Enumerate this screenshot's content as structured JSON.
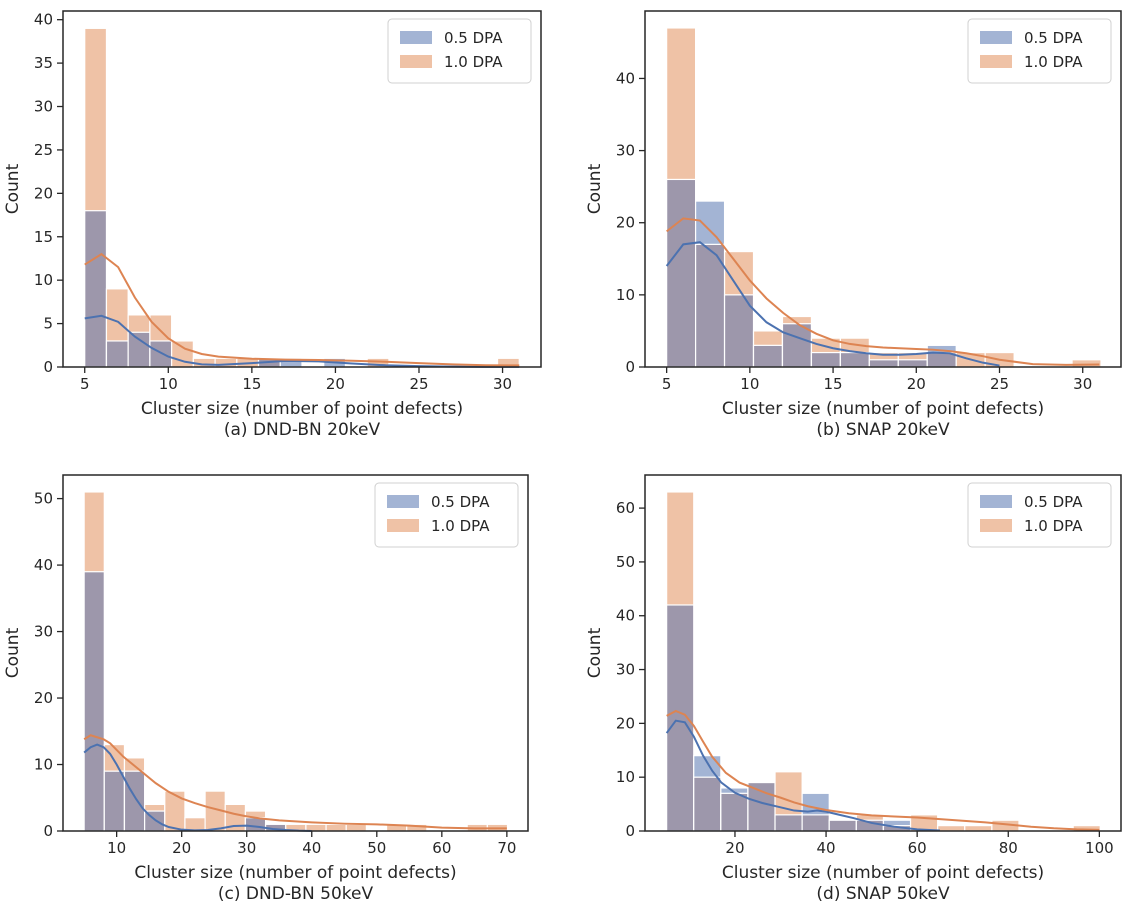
{
  "figure": {
    "legend": [
      "0.5 DPA",
      "1.0 DPA"
    ],
    "colors": {
      "series_a_fill": "#a3b4d4",
      "series_b_fill": "#efc2a6",
      "overlap_fill": "#9d97ab",
      "series_a_line": "#4c72b0",
      "series_b_line": "#dd8452",
      "axis": "#262626",
      "bar_edge": "#ffffff"
    }
  },
  "chart_data": [
    {
      "type": "bar",
      "title": "(a) DND-BN 20keV",
      "xlabel": "Cluster size (number of point defects)",
      "ylabel": "Count",
      "xlim": [
        3.7,
        32.3
      ],
      "ylim": [
        0,
        41
      ],
      "xticks": [
        5,
        10,
        15,
        20,
        25,
        30
      ],
      "yticks": [
        0,
        5,
        10,
        15,
        20,
        25,
        30,
        35,
        40
      ],
      "bin_start": 5,
      "bin_width": 1.3,
      "series": [
        {
          "name": "0.5 DPA",
          "values": [
            18,
            3,
            4,
            3,
            0,
            0,
            0,
            0,
            1,
            1,
            0,
            1,
            0,
            0,
            0,
            0,
            0,
            0,
            0,
            0
          ]
        },
        {
          "name": "1.0 DPA",
          "values": [
            39,
            9,
            6,
            6,
            3,
            1,
            1,
            1,
            1,
            0,
            0,
            0,
            0,
            1,
            0,
            0,
            0,
            0,
            0,
            1
          ]
        }
      ],
      "kde": [
        {
          "name": "0.5 DPA",
          "x": [
            5,
            6,
            7,
            8,
            9,
            10,
            11,
            12,
            13,
            15,
            17,
            19,
            21,
            23,
            25,
            27,
            29,
            31
          ],
          "y": [
            5.6,
            5.9,
            5.2,
            3.5,
            2.2,
            1.2,
            0.6,
            0.3,
            0.25,
            0.45,
            0.7,
            0.65,
            0.4,
            0.2,
            0.1,
            0.05,
            0.02,
            0.01
          ]
        },
        {
          "name": "1.0 DPA",
          "x": [
            5,
            6,
            7,
            8,
            9,
            10,
            11,
            12,
            13,
            15,
            17,
            19,
            21,
            23,
            25,
            27,
            29,
            31
          ],
          "y": [
            11.8,
            13,
            11.5,
            8,
            5.2,
            3.3,
            2.1,
            1.5,
            1.2,
            0.95,
            0.85,
            0.8,
            0.72,
            0.6,
            0.45,
            0.3,
            0.2,
            0.18
          ]
        }
      ]
    },
    {
      "type": "bar",
      "title": "(b) SNAP 20keV",
      "xlabel": "Cluster size (number of point defects)",
      "ylabel": "Count",
      "xlim": [
        3.7,
        32.3
      ],
      "ylim": [
        0,
        49.35
      ],
      "xticks": [
        5,
        10,
        15,
        20,
        25,
        30
      ],
      "yticks": [
        0,
        10,
        20,
        30,
        40
      ],
      "bin_start": 5,
      "bin_width": 1.74,
      "series": [
        {
          "name": "0.5 DPA",
          "values": [
            26,
            23,
            10,
            3,
            6,
            2,
            2,
            1,
            1,
            3,
            0,
            0,
            0,
            0,
            0
          ]
        },
        {
          "name": "1.0 DPA",
          "values": [
            47,
            17,
            16,
            5,
            7,
            4,
            4,
            2,
            2,
            2,
            2,
            2,
            0,
            0,
            1
          ]
        }
      ],
      "kde": [
        {
          "name": "0.5 DPA",
          "x": [
            5,
            6,
            7,
            8,
            9,
            10,
            11,
            12,
            13,
            14,
            15,
            16,
            17,
            18,
            19,
            20,
            21,
            22,
            23,
            24,
            25
          ],
          "y": [
            14,
            17,
            17.3,
            15.5,
            12,
            8.5,
            6.2,
            4.8,
            4,
            3.2,
            2.6,
            2.2,
            1.9,
            1.7,
            1.7,
            1.8,
            2,
            1.9,
            1.2,
            0.6,
            0.2
          ]
        },
        {
          "name": "1.0 DPA",
          "x": [
            5,
            6,
            7,
            8,
            9,
            10,
            11,
            12,
            13,
            14,
            15,
            16,
            17,
            18,
            19,
            20,
            21,
            22,
            23,
            24,
            25,
            27,
            29,
            31
          ],
          "y": [
            18.8,
            20.6,
            20.3,
            18,
            15,
            12,
            9.5,
            7.5,
            5.8,
            4.6,
            3.7,
            3.2,
            2.9,
            2.7,
            2.6,
            2.5,
            2.4,
            2.2,
            1.9,
            1.5,
            1,
            0.4,
            0.3,
            0.35
          ]
        }
      ]
    },
    {
      "type": "bar",
      "title": "(c) DND-BN 50keV",
      "xlabel": "Cluster size (number of point defects)",
      "ylabel": "Count",
      "xlim": [
        1.75,
        73.25
      ],
      "ylim": [
        0,
        53.55
      ],
      "xticks": [
        10,
        20,
        30,
        40,
        50,
        60,
        70
      ],
      "yticks": [
        0,
        10,
        20,
        30,
        40,
        50
      ],
      "bin_start": 5,
      "bin_width": 3.1,
      "series": [
        {
          "name": "0.5 DPA",
          "values": [
            39,
            9,
            9,
            3,
            0,
            0,
            0,
            0,
            2,
            1,
            0,
            0,
            0,
            0,
            0,
            0,
            0,
            0,
            0,
            0,
            0
          ]
        },
        {
          "name": "1.0 DPA",
          "values": [
            51,
            13,
            11,
            4,
            6,
            2,
            6,
            4,
            3,
            1,
            1,
            1,
            1,
            1,
            0,
            1,
            1,
            0,
            0,
            1,
            1
          ]
        }
      ],
      "kde": [
        {
          "name": "0.5 DPA",
          "x": [
            5,
            6,
            7,
            8,
            9,
            10,
            11,
            12,
            13,
            14,
            15,
            16,
            17,
            18,
            20,
            22,
            24,
            26,
            28,
            30,
            32,
            34,
            36,
            38,
            40
          ],
          "y": [
            11.8,
            12.6,
            13,
            12.6,
            11.6,
            10,
            8.2,
            6.4,
            4.8,
            3.4,
            2.4,
            1.6,
            1,
            0.6,
            0.2,
            0.1,
            0.15,
            0.4,
            0.75,
            0.8,
            0.6,
            0.3,
            0.15,
            0.05,
            0
          ]
        },
        {
          "name": "1.0 DPA",
          "x": [
            5,
            6,
            7,
            8,
            9,
            10,
            11,
            12,
            14,
            16,
            18,
            20,
            22,
            24,
            26,
            28,
            30,
            32,
            35,
            40,
            45,
            50,
            55,
            60,
            65,
            70
          ],
          "y": [
            13.8,
            14.4,
            14.1,
            13.8,
            13.2,
            12.2,
            11.2,
            10.4,
            8.8,
            7.2,
            5.9,
            4.9,
            4.2,
            3.6,
            3.1,
            2.6,
            2.2,
            1.9,
            1.6,
            1.3,
            1.1,
            1,
            0.8,
            0.5,
            0.4,
            0.4
          ]
        }
      ]
    },
    {
      "type": "bar",
      "title": "(d) SNAP 50keV",
      "xlabel": "Cluster size (number of point defects)",
      "ylabel": "Count",
      "xlim": [
        0.25,
        104.75
      ],
      "ylim": [
        0,
        66.15
      ],
      "xticks": [
        20,
        40,
        60,
        80,
        100
      ],
      "yticks": [
        0,
        10,
        20,
        30,
        40,
        50,
        60
      ],
      "bin_start": 5,
      "bin_width": 5.95,
      "series": [
        {
          "name": "0.5 DPA",
          "values": [
            42,
            14,
            8,
            9,
            3,
            7,
            2,
            2,
            2,
            0,
            0,
            0,
            0,
            0,
            0,
            0
          ]
        },
        {
          "name": "1.0 DPA",
          "values": [
            63,
            10,
            7,
            9,
            11,
            3,
            2,
            3,
            1,
            3,
            1,
            1,
            2,
            0,
            0,
            1
          ]
        }
      ],
      "kde": [
        {
          "name": "0.5 DPA",
          "x": [
            5,
            7,
            9,
            11,
            13,
            15,
            17,
            20,
            23,
            26,
            30,
            33,
            36,
            38,
            40,
            43,
            46,
            50,
            55,
            60,
            65
          ],
          "y": [
            18.2,
            20.5,
            20.2,
            17.5,
            14,
            11.2,
            9,
            7.1,
            6,
            5.2,
            4.4,
            3.8,
            3.6,
            3.8,
            3.6,
            3,
            2.4,
            1.5,
            0.8,
            0.3,
            0.1
          ]
        },
        {
          "name": "1.0 DPA",
          "x": [
            5,
            7,
            9,
            11,
            13,
            15,
            18,
            21,
            24,
            27,
            30,
            33,
            36,
            40,
            45,
            50,
            55,
            60,
            65,
            70,
            75,
            80,
            85,
            90,
            95,
            100
          ],
          "y": [
            21.4,
            22.3,
            21.6,
            19.5,
            16.6,
            13.8,
            10.8,
            9,
            8,
            7,
            6.2,
            5.3,
            4.6,
            3.9,
            3.3,
            2.9,
            2.7,
            2.5,
            2.2,
            1.9,
            1.6,
            1.2,
            0.8,
            0.5,
            0.3,
            0.2
          ]
        }
      ]
    }
  ]
}
